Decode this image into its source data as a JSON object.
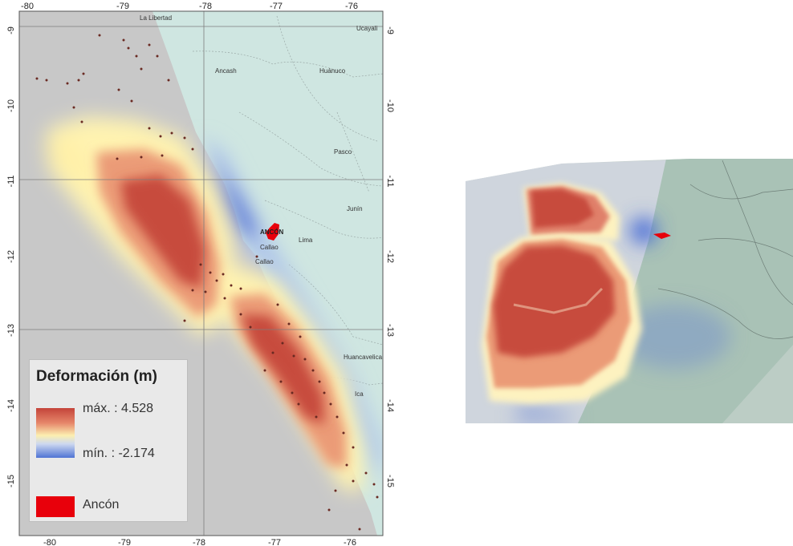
{
  "map": {
    "lon_ticks_top": [
      "-80",
      "-79",
      "-78",
      "-77",
      "-76"
    ],
    "lon_ticks_bottom": [
      "-80",
      "-79",
      "-78",
      "-77",
      "-76"
    ],
    "lat_ticks_left": [
      "-9",
      "-10",
      "-11",
      "-12",
      "-13",
      "-14",
      "-15"
    ],
    "lat_ticks_right": [
      "-9",
      "-10",
      "-11",
      "-12",
      "-13",
      "-14",
      "-15"
    ],
    "regions": [
      "La Libertad",
      "Ucayali",
      "Ancash",
      "Huánuco",
      "Pasco",
      "Junín",
      "Lima",
      "Huancavelica",
      "Ica"
    ],
    "cities": {
      "ancon": "ANCÓN",
      "callao_1": "Callao",
      "callao_2": "Callao"
    }
  },
  "legend": {
    "title": "Deformación (m)",
    "max_label": "máx. : 4.528",
    "min_label": "mín. : -2.174",
    "area_label": "Ancón"
  },
  "colors": {
    "ocean": "#c8c8c8",
    "land": "#cfe6e1",
    "uplift": "#c4443a",
    "subsidence": "#4f74d4",
    "ancon": "#e8000b"
  }
}
